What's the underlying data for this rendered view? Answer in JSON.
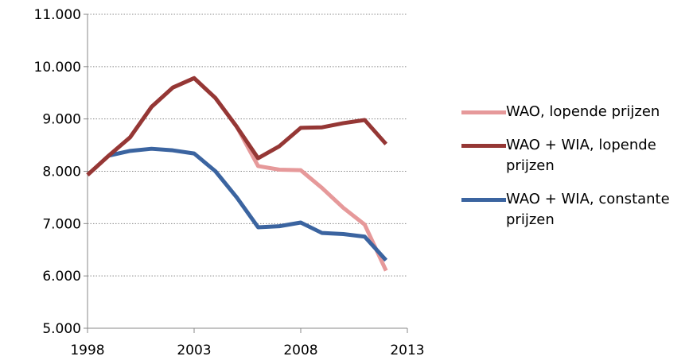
{
  "chart_data": {
    "type": "line",
    "x": [
      1998,
      1999,
      2000,
      2001,
      2002,
      2003,
      2004,
      2005,
      2006,
      2007,
      2008,
      2009,
      2010,
      2011,
      2012
    ],
    "series": [
      {
        "name": "WAO, lopende prijzen",
        "color": "#e6999a",
        "values": [
          7930,
          8300,
          8650,
          9230,
          9600,
          9780,
          9400,
          8850,
          8100,
          8030,
          8020,
          7680,
          7300,
          6980,
          6100
        ]
      },
      {
        "name": "WAO + WIA, lopende prijzen",
        "color": "#953735",
        "values": [
          7930,
          8300,
          8650,
          9230,
          9600,
          9780,
          9400,
          8850,
          8250,
          8480,
          8830,
          8840,
          8920,
          8980,
          8520
        ]
      },
      {
        "name": "WAO + WIA, constante prijzen",
        "color": "#3b64a0",
        "values": [
          null,
          8300,
          8390,
          8430,
          8400,
          8340,
          8000,
          7500,
          6930,
          6950,
          7020,
          6820,
          6800,
          6750,
          6300
        ]
      }
    ],
    "xlim": [
      1998,
      2013
    ],
    "xticks": [
      1998,
      2003,
      2008,
      2013
    ],
    "ylim": [
      5000,
      11000
    ],
    "yticks": [
      {
        "value": 5000,
        "label": "5.000"
      },
      {
        "value": 6000,
        "label": "6.000"
      },
      {
        "value": 7000,
        "label": "7.000"
      },
      {
        "value": 8000,
        "label": "8.000"
      },
      {
        "value": 9000,
        "label": "9.000"
      },
      {
        "value": 10000,
        "label": "10.000"
      },
      {
        "value": 11000,
        "label": "11.000"
      }
    ],
    "grid": true
  }
}
